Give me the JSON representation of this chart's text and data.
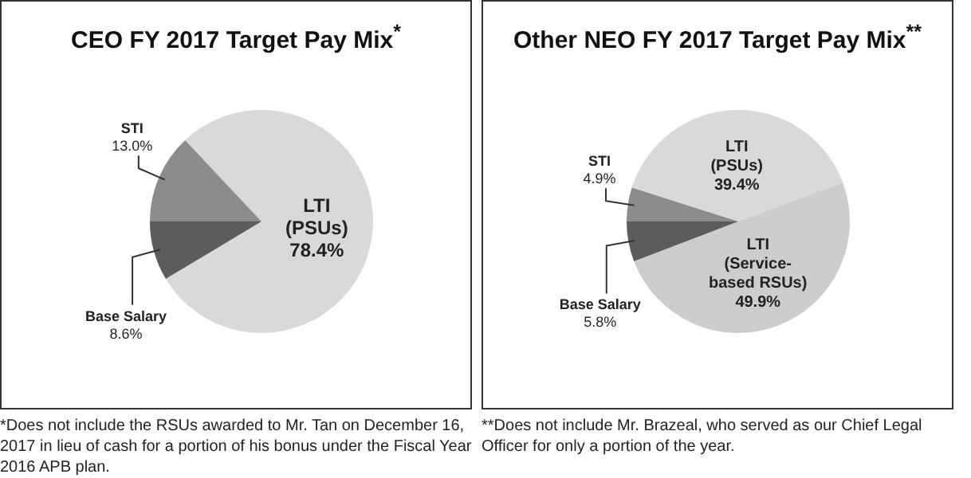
{
  "chart_data": [
    {
      "type": "pie",
      "title": "CEO FY 2017 Target Pay Mix$^{*}$",
      "categories": [
        "LTI (PSUs)",
        "Base Salary",
        "STI"
      ],
      "values": [
        78.4,
        8.6,
        13.0
      ],
      "value_labels": [
        "78.4%",
        "8.6%",
        "13.0%"
      ],
      "colors": [
        "#d9d9d9",
        "#5c5c5c",
        "#8c8c8c"
      ],
      "legend": false,
      "annotations": [
        "*Does not include the RSUs awarded to Mr. Tan on December 16, 2017 in lieu of cash for a portion of his bonus under the Fiscal Year 2016 APB plan."
      ]
    },
    {
      "type": "pie",
      "title": "Other NEO FY 2017 Target Pay Mix$^{**}$",
      "categories": [
        "LTI (PSUs)",
        "LTI (Service-based RSUs)",
        "Base Salary",
        "STI"
      ],
      "values": [
        39.4,
        49.9,
        5.8,
        4.9
      ],
      "value_labels": [
        "39.4%",
        "49.9%",
        "5.8%",
        "4.9%"
      ],
      "colors": [
        "#d9d9d9",
        "#cdcdcd",
        "#5c5c5c",
        "#8c8c8c"
      ],
      "legend": false,
      "annotations": [
        "**Does not include Mr. Brazeal, who served as our Chief Legal Officer for only a portion of the year."
      ]
    }
  ]
}
